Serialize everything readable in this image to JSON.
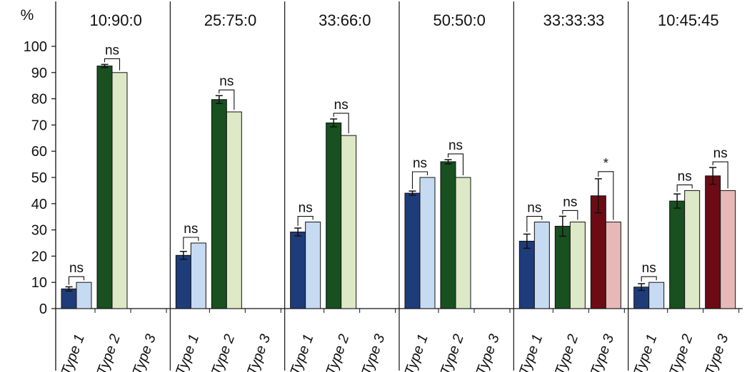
{
  "chart_data": {
    "type": "bar",
    "y_unit_label": "%",
    "ylim": [
      0,
      100
    ],
    "yticks": [
      0,
      10,
      20,
      30,
      40,
      50,
      60,
      70,
      80,
      90,
      100
    ],
    "grid": false,
    "legend": "none",
    "groups": [
      {
        "title": "10:90:0",
        "categories": [
          {
            "label": "Type 1",
            "measured": 7.5,
            "error": 0.8,
            "expected": 10,
            "sig": "ns"
          },
          {
            "label": "Type 2",
            "measured": 92.5,
            "error": 0.6,
            "expected": 90,
            "sig": "ns"
          },
          {
            "label": "Type 3",
            "measured": null,
            "error": null,
            "expected": null,
            "sig": ""
          }
        ]
      },
      {
        "title": "25:75:0",
        "categories": [
          {
            "label": "Type 1",
            "measured": 20.3,
            "error": 1.5,
            "expected": 25,
            "sig": "ns"
          },
          {
            "label": "Type 2",
            "measured": 79.7,
            "error": 1.5,
            "expected": 75,
            "sig": "ns"
          },
          {
            "label": "Type 3",
            "measured": null,
            "error": null,
            "expected": null,
            "sig": ""
          }
        ]
      },
      {
        "title": "33:66:0",
        "categories": [
          {
            "label": "Type 1",
            "measured": 29.2,
            "error": 1.5,
            "expected": 33,
            "sig": "ns"
          },
          {
            "label": "Type 2",
            "measured": 70.8,
            "error": 1.5,
            "expected": 66,
            "sig": "ns"
          },
          {
            "label": "Type 3",
            "measured": null,
            "error": null,
            "expected": null,
            "sig": ""
          }
        ]
      },
      {
        "title": "50:50:0",
        "categories": [
          {
            "label": "Type 1",
            "measured": 44.0,
            "error": 0.8,
            "expected": 50,
            "sig": "ns"
          },
          {
            "label": "Type 2",
            "measured": 56.0,
            "error": 0.8,
            "expected": 50,
            "sig": "ns"
          },
          {
            "label": "Type 3",
            "measured": null,
            "error": null,
            "expected": null,
            "sig": ""
          }
        ]
      },
      {
        "title": "33:33:33",
        "categories": [
          {
            "label": "Type 1",
            "measured": 25.7,
            "error": 2.7,
            "expected": 33,
            "sig": "ns"
          },
          {
            "label": "Type 2",
            "measured": 31.4,
            "error": 3.8,
            "expected": 33,
            "sig": "ns"
          },
          {
            "label": "Type 3",
            "measured": 43.0,
            "error": 6.5,
            "expected": 33,
            "sig": "*"
          }
        ]
      },
      {
        "title": "10:45:45",
        "categories": [
          {
            "label": "Type 1",
            "measured": 8.2,
            "error": 1.3,
            "expected": 10,
            "sig": "ns"
          },
          {
            "label": "Type 2",
            "measured": 41.0,
            "error": 2.7,
            "expected": 45,
            "sig": "ns"
          },
          {
            "label": "Type 3",
            "measured": 50.6,
            "error": 3.2,
            "expected": 45,
            "sig": "ns"
          }
        ]
      }
    ],
    "colors": {
      "Type 1": {
        "measured": "#1f3c7a",
        "expected": "#c6daf2"
      },
      "Type 2": {
        "measured": "#18501f",
        "expected": "#dde8c6"
      },
      "Type 3": {
        "measured": "#6d0b14",
        "expected": "#e8b8b8"
      }
    }
  }
}
